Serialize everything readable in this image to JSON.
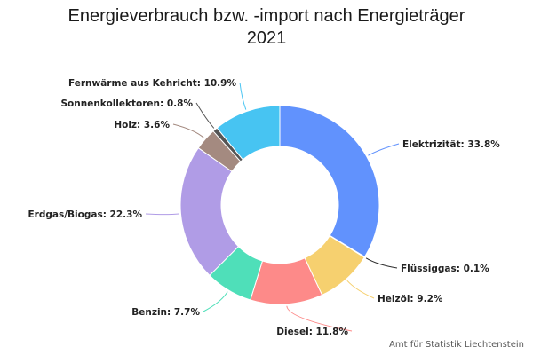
{
  "chart_data": {
    "type": "pie",
    "title_lines": [
      "Energieverbrauch bzw. -import nach Energieträger",
      "2021"
    ],
    "credit": "Amt für Statistik Liechtenstein",
    "slices": [
      {
        "name": "Elektrizität",
        "value": 33.8,
        "label": "Elektrizität: 33.8%",
        "color": "#6192fd"
      },
      {
        "name": "Flüssiggas",
        "value": 0.1,
        "label": "Flüssiggas: 0.1%",
        "color": "#2b2b2b"
      },
      {
        "name": "Heizöl",
        "value": 9.2,
        "label": "Heizöl: 9.2%",
        "color": "#f6d06f"
      },
      {
        "name": "Diesel",
        "value": 11.8,
        "label": "Diesel: 11.8%",
        "color": "#fd8a89"
      },
      {
        "name": "Benzin",
        "value": 7.7,
        "label": "Benzin: 7.7%",
        "color": "#4fdfb9"
      },
      {
        "name": "Erdgas/Biogas",
        "value": 22.3,
        "label": "Erdgas/Biogas: 22.3%",
        "color": "#b09ce6"
      },
      {
        "name": "Holz",
        "value": 3.6,
        "label": "Holz: 3.6%",
        "color": "#a48a80"
      },
      {
        "name": "Sonnenkollektoren",
        "value": 0.8,
        "label": "Sonnenkollektoren: 0.8%",
        "color": "#555555"
      },
      {
        "name": "Fernwärme aus Kehricht",
        "value": 10.9,
        "label": "Fernwärme aus Kehricht: 10.9%",
        "color": "#47c4f2"
      }
    ]
  }
}
